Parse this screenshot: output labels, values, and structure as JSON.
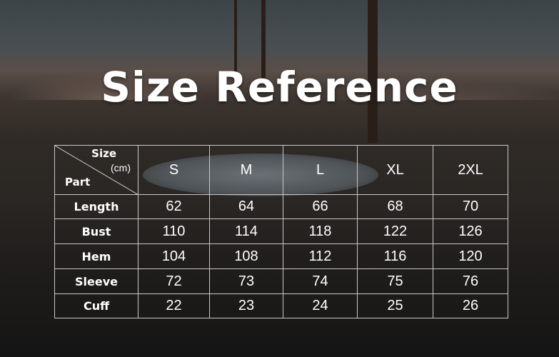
{
  "title": "Size Reference",
  "table": {
    "corner": {
      "size_label": "Size",
      "unit_label": "(cm)",
      "part_label": "Part"
    },
    "sizes": [
      "S",
      "M",
      "L",
      "XL",
      "2XL"
    ],
    "rows": [
      {
        "part": "Length",
        "values": [
          "62",
          "64",
          "66",
          "68",
          "70"
        ]
      },
      {
        "part": "Bust",
        "values": [
          "110",
          "114",
          "118",
          "122",
          "126"
        ]
      },
      {
        "part": "Hem",
        "values": [
          "104",
          "108",
          "112",
          "116",
          "120"
        ]
      },
      {
        "part": "Sleeve",
        "values": [
          "72",
          "73",
          "74",
          "75",
          "76"
        ]
      },
      {
        "part": "Cuff",
        "values": [
          "22",
          "23",
          "24",
          "25",
          "26"
        ]
      }
    ]
  }
}
